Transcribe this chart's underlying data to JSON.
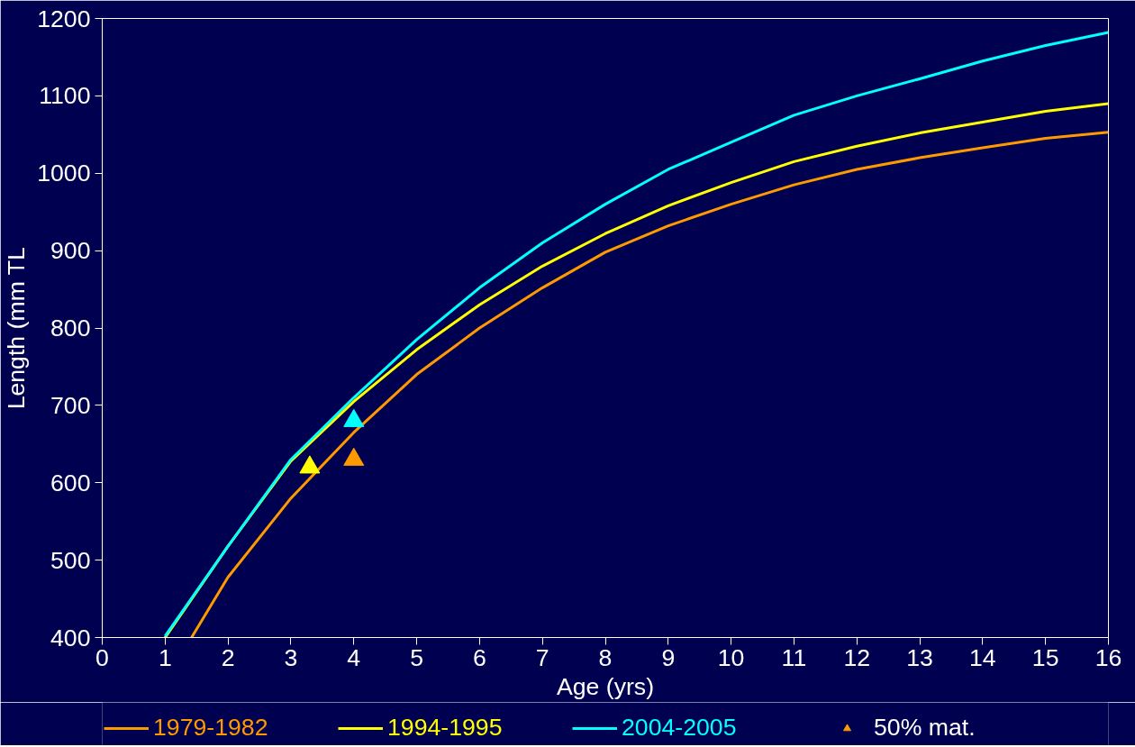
{
  "chart_data": {
    "type": "line",
    "xlabel": "Age (yrs)",
    "ylabel": "Length (mm TL",
    "xlim": [
      0,
      16
    ],
    "ylim": [
      400,
      1200
    ],
    "xticks": [
      0,
      1,
      2,
      3,
      4,
      5,
      6,
      7,
      8,
      9,
      10,
      11,
      12,
      13,
      14,
      15,
      16
    ],
    "yticks": [
      400,
      500,
      600,
      700,
      800,
      900,
      1000,
      1100,
      1200
    ],
    "grid": false,
    "legend": "bottom",
    "line_style": "solid",
    "series": [
      {
        "name": "1979-1982",
        "color": "#ff9900",
        "x": [
          1.42,
          2,
          3,
          4,
          5,
          6,
          7,
          8,
          9,
          10,
          11,
          12,
          13,
          14,
          15,
          16
        ],
        "values": [
          400,
          478,
          580,
          665,
          740,
          800,
          852,
          898,
          932,
          960,
          985,
          1005,
          1020,
          1033,
          1045,
          1053
        ]
      },
      {
        "name": "1994-1995",
        "color": "#ffff00",
        "x": [
          1,
          2,
          3,
          4,
          5,
          6,
          7,
          8,
          9,
          10,
          11,
          12,
          13,
          14,
          15,
          16
        ],
        "values": [
          400,
          518,
          628,
          705,
          772,
          830,
          880,
          922,
          958,
          988,
          1015,
          1035,
          1052,
          1066,
          1080,
          1090
        ]
      },
      {
        "name": "2004-2005",
        "color": "#00ffff",
        "x": [
          1,
          2,
          3,
          4,
          5,
          6,
          7,
          8,
          9,
          10,
          11,
          12,
          13,
          14,
          15,
          16
        ],
        "values": [
          402,
          518,
          630,
          710,
          785,
          852,
          910,
          960,
          1005,
          1040,
          1075,
          1100,
          1122,
          1145,
          1165,
          1182
        ]
      },
      {
        "name": "50% mat.",
        "type": "scatter",
        "marker": "triangle",
        "color": "#ff9900",
        "colors": [
          "#ffff00",
          "#00ffff",
          "#ff9900"
        ],
        "x": [
          3.3,
          4,
          4
        ],
        "values": [
          620,
          680,
          630
        ]
      }
    ]
  }
}
